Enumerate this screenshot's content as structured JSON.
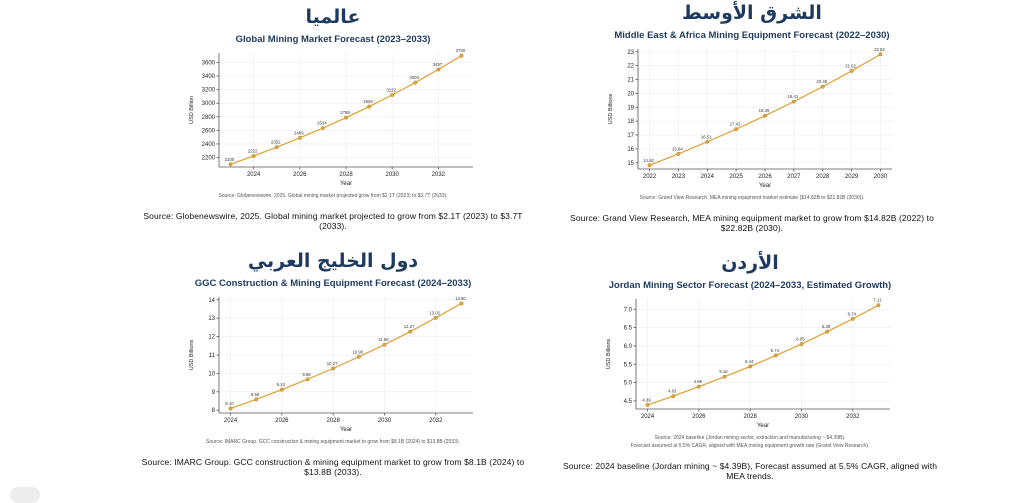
{
  "colors": {
    "line": "#dfa63e",
    "marker_fill": "#e6a93c",
    "marker_edge": "#a87b1e",
    "heading_navy": "#1f3a5f",
    "grid": "#ececec",
    "axis": "#555555",
    "tick_text": "#222222",
    "point_label": "#3a3a3a"
  },
  "chart_data": [
    {
      "type": "line",
      "region_heading_ar": "عالميا",
      "title": "Global Mining Market Forecast (2023–2033)",
      "xlabel": "Year",
      "ylabel": "USD Billion",
      "legend": null,
      "grid": true,
      "x": [
        2023,
        2024,
        2025,
        2026,
        2027,
        2028,
        2029,
        2030,
        2031,
        2032,
        2033
      ],
      "values": [
        2100,
        2222,
        2352,
        2489,
        2634,
        2788,
        2950,
        3122,
        3304,
        3497,
        3700
      ],
      "xticks": [
        2024,
        2026,
        2028,
        2030,
        2032
      ],
      "yticks": [
        2200,
        2400,
        2600,
        2800,
        3000,
        3200,
        3400,
        3600
      ],
      "xlim": [
        2022.5,
        2033.5
      ],
      "ylim": [
        2060,
        3740
      ],
      "label_decimals": 0,
      "ytick_decimals": 0,
      "figure_note": "Source: Globenewswire, 2025. Global mining market projected grow from $2.1T (2023) to $3.7T (2033).",
      "figure_note2": "",
      "caption": "Source: Globenewswire, 2025. Global mining market projected to grow from $2.1T (2023) to $3.7T (2033)."
    },
    {
      "type": "line",
      "region_heading_ar": "الشرق الأوسط",
      "title": "Middle East & Africa Mining Equipment Forecast (2022–2030)",
      "xlabel": "Year",
      "ylabel": "USD Billions",
      "legend": null,
      "grid": true,
      "x": [
        2022,
        2023,
        2024,
        2025,
        2026,
        2027,
        2028,
        2029,
        2030
      ],
      "values": [
        14.82,
        15.64,
        16.51,
        17.42,
        18.39,
        19.41,
        20.48,
        21.62,
        22.82
      ],
      "xticks": [
        2022,
        2023,
        2024,
        2025,
        2026,
        2027,
        2028,
        2029,
        2030
      ],
      "yticks": [
        15,
        16,
        17,
        18,
        19,
        20,
        21,
        22,
        23
      ],
      "xlim": [
        2021.6,
        2030.4
      ],
      "ylim": [
        14.55,
        23.2
      ],
      "label_decimals": 2,
      "ytick_decimals": 0,
      "figure_note": "Source: Grand View Research. MEA mining equipment market estimate ($14.82B to $22.82B (2030)).",
      "figure_note2": "",
      "caption": "Source: Grand View Research, MEA mining equipment market to grow from $14.82B (2022) to $22.82B (2030)."
    },
    {
      "type": "line",
      "region_heading_ar": "دول الخليج العربي",
      "title": "GGC Construction & Mining Equipment Forecast (2024–2033)",
      "xlabel": "Year",
      "ylabel": "USD Billions",
      "legend": null,
      "grid": true,
      "x": [
        2024,
        2025,
        2026,
        2027,
        2028,
        2029,
        2030,
        2031,
        2032,
        2033
      ],
      "values": [
        8.1,
        8.59,
        9.12,
        9.68,
        10.27,
        10.9,
        11.56,
        12.27,
        13.02,
        13.8
      ],
      "xticks": [
        2024,
        2026,
        2028,
        2030,
        2032
      ],
      "yticks": [
        8,
        9,
        10,
        11,
        12,
        13,
        14
      ],
      "xlim": [
        2023.55,
        2033.45
      ],
      "ylim": [
        7.85,
        14.15
      ],
      "label_decimals": 2,
      "ytick_decimals": 0,
      "figure_note": "Source: IMARC Group. GCC construction & mining equipment market to grow from $8.1B (2024) to $13.8B (2033).",
      "figure_note2": "",
      "caption": "Source: IMARC Group. GCC construction & mining equipment market to grow from $8.1B (2024) to $13.8B (2033)."
    },
    {
      "type": "line",
      "region_heading_ar": "الأردن",
      "title": "Jordan Mining Sector Forecast (2024–2033, Estimated Growth)",
      "xlabel": "Year",
      "ylabel": "USD Billions",
      "legend": null,
      "grid": true,
      "x": [
        2024,
        2025,
        2026,
        2027,
        2028,
        2029,
        2030,
        2031,
        2032,
        2033
      ],
      "values": [
        4.39,
        4.63,
        4.89,
        5.16,
        5.44,
        5.74,
        6.05,
        6.39,
        6.74,
        7.11
      ],
      "xticks": [
        2024,
        2026,
        2028,
        2030,
        2032
      ],
      "yticks": [
        4.5,
        5.0,
        5.5,
        6.0,
        6.5,
        7.0
      ],
      "xlim": [
        2023.55,
        2033.45
      ],
      "ylim": [
        4.28,
        7.28
      ],
      "label_decimals": 2,
      "ytick_decimals": 1,
      "figure_note": "Source: 2024 baseline (Jordan mining sector, extraction and manufacturing ~ $4.39B).",
      "figure_note2": "Forecast assumed at 5.5% CAGR, aligned with MEA mining equipment growth rate (Grand View Research).",
      "caption": "Source: 2024 baseline (Jordan mining ~ $4.39B), Forecast assumed at 5.5% CAGR, aligned with MEA trends."
    }
  ]
}
